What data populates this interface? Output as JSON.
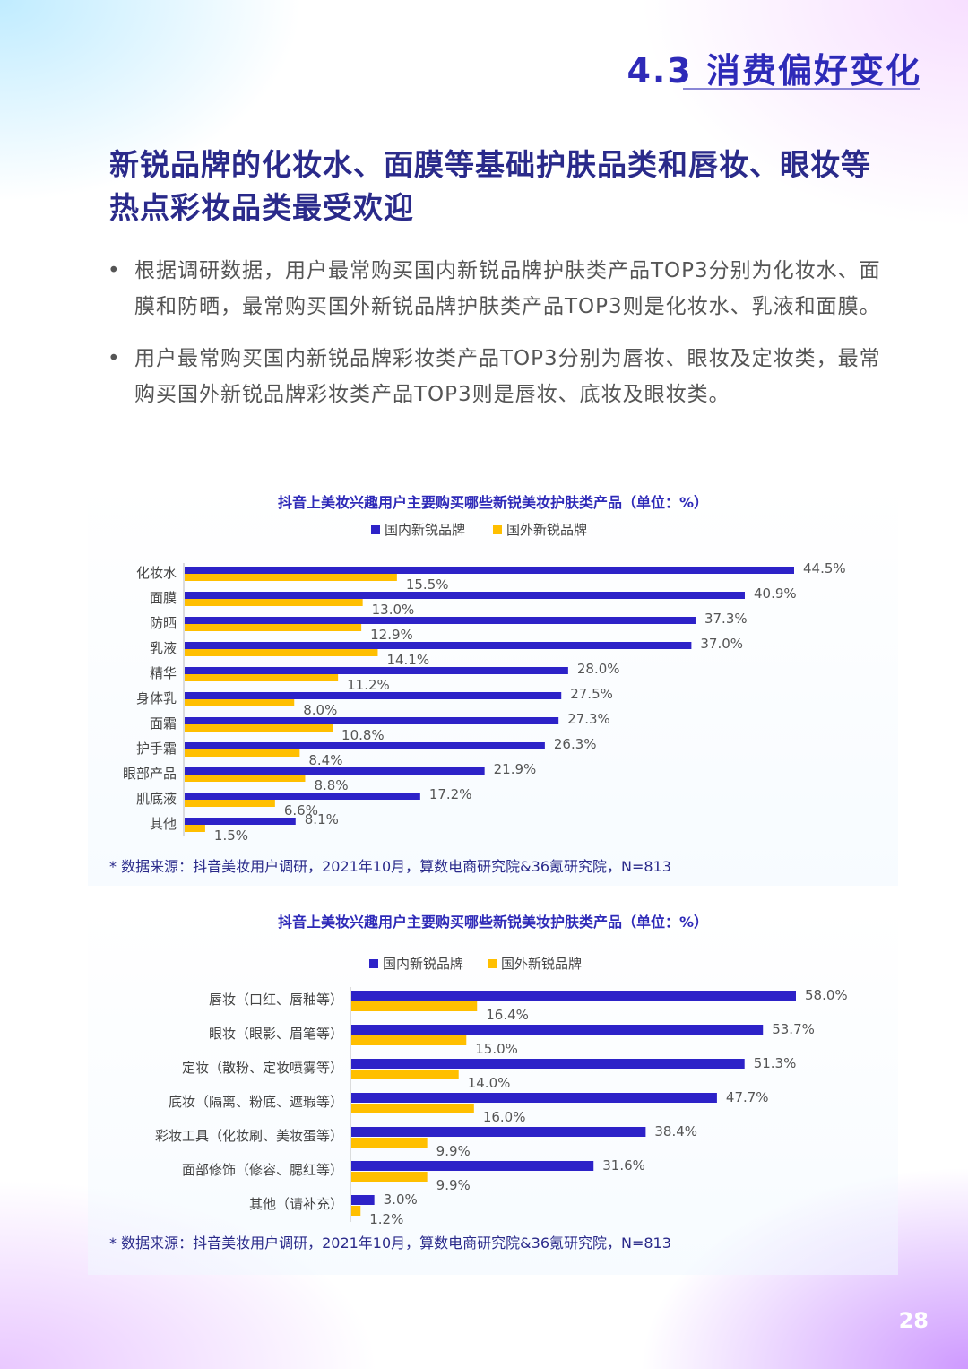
{
  "section": {
    "title": "4.3 消费偏好变化"
  },
  "headline": "新锐品牌的化妆水、面膜等基础护肤品类和唇妆、眼妆等热点彩妆品类最受欢迎",
  "bullets": [
    "根据调研数据，用户最常购买国内新锐品牌护肤类产品TOP3分别为化妆水、面膜和防晒，最常购买国外新锐品牌护肤类产品TOP3则是化妆水、乳液和面膜。",
    "用户最常购买国内新锐品牌彩妆类产品TOP3分别为唇妆、眼妆及定妆类，最常购买国外新锐品牌彩妆类产品TOP3则是唇妆、底妆及眼妆类。"
  ],
  "colors": {
    "domestic": "#2d22c8",
    "foreign": "#ffbf00",
    "title": "#2e2ab8"
  },
  "chart_data": [
    {
      "type": "bar",
      "orientation": "horizontal",
      "title": "抖音上美妆兴趣用户主要购买哪些新锐美妆护肤类产品（单位：%）",
      "legend_position": "top",
      "categories": [
        "化妆水",
        "面膜",
        "防晒",
        "乳液",
        "精华",
        "身体乳",
        "面霜",
        "护手霜",
        "眼部产品",
        "肌底液",
        "其他"
      ],
      "series": [
        {
          "name": "国内新锐品牌",
          "values": [
            44.5,
            40.9,
            37.3,
            37.0,
            28.0,
            27.5,
            27.3,
            26.3,
            21.9,
            17.2,
            8.1
          ]
        },
        {
          "name": "国外新锐品牌",
          "values": [
            15.5,
            13.0,
            12.9,
            14.1,
            11.2,
            8.0,
            10.8,
            8.4,
            8.8,
            6.6,
            1.5
          ]
        }
      ],
      "value_format": "{v}%",
      "xlim": [
        0,
        44.5
      ],
      "source": "* 数据来源：抖音美妆用户调研，2021年10月，算数电商研究院&36氪研究院，N=813"
    },
    {
      "type": "bar",
      "orientation": "horizontal",
      "title": "抖音上美妆兴趣用户主要购买哪些新锐美妆护肤类产品（单位：%）",
      "legend_position": "top",
      "categories": [
        "唇妆（口红、唇釉等）",
        "眼妆（眼影、眉笔等）",
        "定妆（散粉、定妆喷雾等）",
        "底妆（隔离、粉底、遮瑕等）",
        "彩妆工具（化妆刷、美妆蛋等）",
        "面部修饰（修容、腮红等）",
        "其他（请补充）"
      ],
      "series": [
        {
          "name": "国内新锐品牌",
          "values": [
            58.0,
            53.7,
            51.3,
            47.7,
            38.4,
            31.6,
            3.0
          ]
        },
        {
          "name": "国外新锐品牌",
          "values": [
            16.4,
            15.0,
            14.0,
            16.0,
            9.9,
            9.9,
            1.2
          ]
        }
      ],
      "value_format": "{v}%",
      "xlim": [
        0,
        58.0
      ],
      "source": "* 数据来源：抖音美妆用户调研，2021年10月，算数电商研究院&36氪研究院，N=813"
    }
  ],
  "page_number": "28"
}
